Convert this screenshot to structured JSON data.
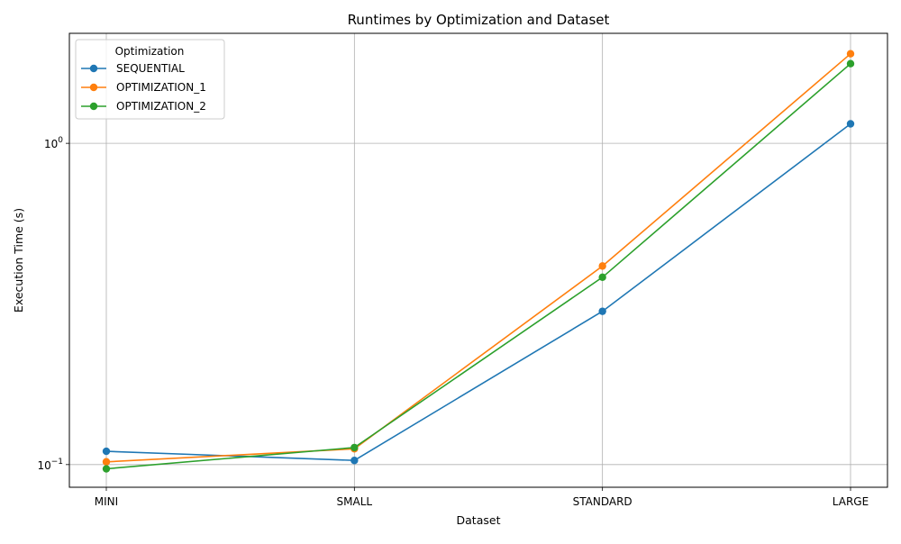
{
  "chart_data": {
    "type": "line",
    "title": "Runtimes by Optimization and Dataset",
    "xlabel": "Dataset",
    "ylabel": "Execution Time (s)",
    "categories": [
      "MINI",
      "SMALL",
      "STANDARD",
      "LARGE"
    ],
    "yscale": "log",
    "ylim": [
      0.085,
      2.2
    ],
    "y_ticks": [
      {
        "value": 0.1,
        "base": "10",
        "exp": "−1"
      },
      {
        "value": 1,
        "base": "10",
        "exp": "0"
      }
    ],
    "grid": true,
    "legend": {
      "title": "Optimization",
      "placement": "top-left"
    },
    "series": [
      {
        "name": "SEQUENTIAL",
        "color": "#1f77b4",
        "values": [
          0.11,
          0.103,
          0.3,
          1.15
        ]
      },
      {
        "name": "OPTIMIZATION_1",
        "color": "#ff7f0e",
        "values": [
          0.102,
          0.112,
          0.415,
          1.9
        ]
      },
      {
        "name": "OPTIMIZATION_2",
        "color": "#2ca02c",
        "values": [
          0.097,
          0.113,
          0.383,
          1.77
        ]
      }
    ]
  }
}
